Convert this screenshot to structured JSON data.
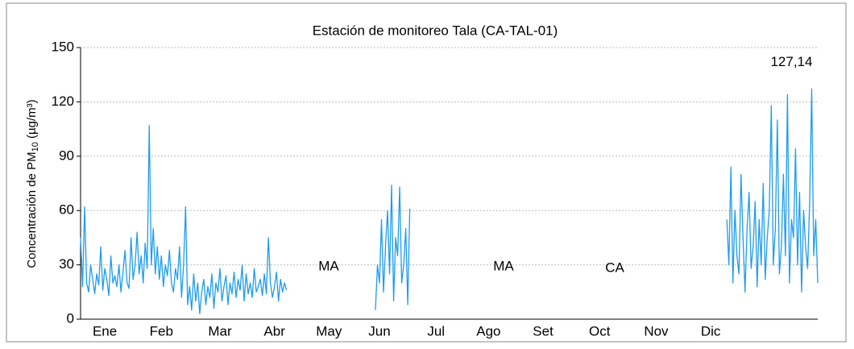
{
  "chart_data": {
    "type": "line",
    "title": "Estación de monitoreo Tala (CA-TAL-01)",
    "ylabel": "Concentración de PM",
    "ylabel_sub": "10",
    "ylabel_end": " (µg/m³)",
    "xlim": [
      0,
      365
    ],
    "ylim": [
      0,
      150
    ],
    "yticks": [
      0,
      30,
      60,
      90,
      120,
      150
    ],
    "grid": true,
    "xticks": [
      {
        "value": 12,
        "label": "Ene"
      },
      {
        "value": 40,
        "label": "Feb"
      },
      {
        "value": 69,
        "label": "Mar"
      },
      {
        "value": 96,
        "label": "Abr"
      },
      {
        "value": 123,
        "label": "May"
      },
      {
        "value": 148,
        "label": "Jun"
      },
      {
        "value": 176,
        "label": "Jul"
      },
      {
        "value": 202,
        "label": "Ago"
      },
      {
        "value": 229,
        "label": "Set"
      },
      {
        "value": 257,
        "label": "Oct"
      },
      {
        "value": 285,
        "label": "Nov"
      },
      {
        "value": 312,
        "label": "Dic"
      }
    ],
    "gap_labels": [
      "MA",
      "MA",
      "CA"
    ],
    "x": [
      0,
      1,
      2,
      3,
      4,
      5,
      6,
      7,
      8,
      9,
      10,
      11,
      12,
      13,
      14,
      15,
      16,
      17,
      18,
      19,
      20,
      21,
      22,
      23,
      24,
      25,
      26,
      27,
      28,
      29,
      30,
      31,
      32,
      33,
      34,
      35,
      36,
      37,
      38,
      39,
      40,
      41,
      42,
      43,
      44,
      45,
      46,
      47,
      48,
      49,
      50,
      51,
      52,
      53,
      54,
      55,
      56,
      57,
      58,
      59,
      60,
      61,
      62,
      63,
      64,
      65,
      66,
      67,
      68,
      69,
      70,
      71,
      72,
      73,
      74,
      75,
      76,
      77,
      78,
      79,
      80,
      81,
      82,
      83,
      84,
      85,
      86,
      87,
      88,
      89,
      90,
      91,
      92,
      93,
      94,
      95,
      96,
      97,
      98,
      99,
      100,
      101,
      102,
      124,
      146,
      147,
      148,
      149,
      150,
      151,
      152,
      153,
      154,
      155,
      156,
      157,
      158,
      159,
      160,
      161,
      162,
      163,
      240,
      320,
      321,
      322,
      323,
      324,
      325,
      326,
      327,
      328,
      329,
      330,
      331,
      332,
      333,
      334,
      335,
      336,
      337,
      338,
      339,
      340,
      341,
      342,
      343,
      344,
      345,
      346,
      347,
      348,
      349,
      350,
      351,
      352,
      353,
      354,
      355,
      356,
      357,
      358,
      359,
      360,
      361,
      362,
      363,
      364,
      365
    ],
    "series": [
      {
        "name": "PM10",
        "color": "#1f9bf0",
        "values": [
          45,
          18,
          62,
          20,
          15,
          30,
          22,
          14,
          25,
          19,
          40,
          16,
          28,
          22,
          13,
          35,
          20,
          24,
          18,
          30,
          15,
          26,
          38,
          20,
          17,
          45,
          22,
          30,
          48,
          25,
          35,
          20,
          42,
          28,
          107,
          30,
          50,
          25,
          40,
          22,
          35,
          18,
          30,
          24,
          38,
          20,
          15,
          28,
          22,
          40,
          12,
          30,
          62,
          8,
          18,
          5,
          25,
          10,
          20,
          3,
          15,
          22,
          8,
          18,
          12,
          25,
          6,
          20,
          15,
          28,
          10,
          18,
          24,
          8,
          20,
          14,
          26,
          12,
          22,
          16,
          30,
          10,
          25,
          14,
          20,
          12,
          28,
          15,
          18,
          22,
          13,
          25,
          14,
          45,
          20,
          12,
          18,
          26,
          10,
          22,
          15,
          20,
          16,
          null,
          5,
          30,
          20,
          55,
          15,
          40,
          60,
          25,
          74,
          10,
          45,
          35,
          73,
          20,
          30,
          50,
          8,
          61,
          null,
          55,
          30,
          84,
          20,
          60,
          35,
          25,
          80,
          45,
          15,
          50,
          70,
          28,
          40,
          65,
          18,
          55,
          30,
          75,
          22,
          45,
          60,
          118,
          30,
          50,
          110,
          25,
          40,
          80,
          35,
          124,
          20,
          55,
          45,
          94,
          30,
          70,
          15,
          60,
          40,
          28,
          65,
          127.14,
          35,
          55,
          20
        ],
        "value_labels": [
          null,
          null,
          null,
          null,
          null,
          null,
          null,
          null,
          null,
          null,
          null,
          null,
          null,
          null,
          null,
          null,
          null,
          null,
          null,
          null,
          null,
          null,
          null,
          null,
          null,
          null,
          null,
          null,
          null,
          null,
          null,
          null,
          null,
          null,
          null,
          null,
          null,
          null,
          null,
          null,
          null,
          null,
          null,
          null,
          null,
          null,
          null,
          null,
          null,
          null,
          null,
          null,
          null,
          null,
          null,
          null,
          null,
          null,
          null,
          null,
          null,
          null,
          null,
          null,
          null,
          null,
          null,
          null,
          null,
          null,
          null,
          null,
          null,
          null,
          null,
          null,
          null,
          null,
          null,
          null,
          null,
          null,
          null,
          null,
          null,
          null,
          null,
          null,
          null,
          null,
          null,
          null,
          null,
          null,
          null,
          null,
          null,
          null,
          null,
          null,
          null,
          null,
          null,
          null,
          null,
          null,
          null,
          null,
          null,
          null,
          null,
          null,
          null,
          null,
          null,
          null,
          null,
          null,
          null,
          null,
          null,
          null,
          null,
          null,
          null,
          null,
          null,
          null,
          null,
          null,
          null,
          null,
          null,
          null,
          null,
          null,
          null,
          null,
          null,
          null,
          null,
          null,
          null,
          null,
          null,
          null,
          null,
          null,
          null,
          null,
          null,
          null,
          null,
          null,
          null,
          null,
          null,
          null,
          null,
          null,
          null,
          null,
          null,
          null,
          null,
          "127,14",
          null,
          null,
          null
        ]
      }
    ]
  }
}
